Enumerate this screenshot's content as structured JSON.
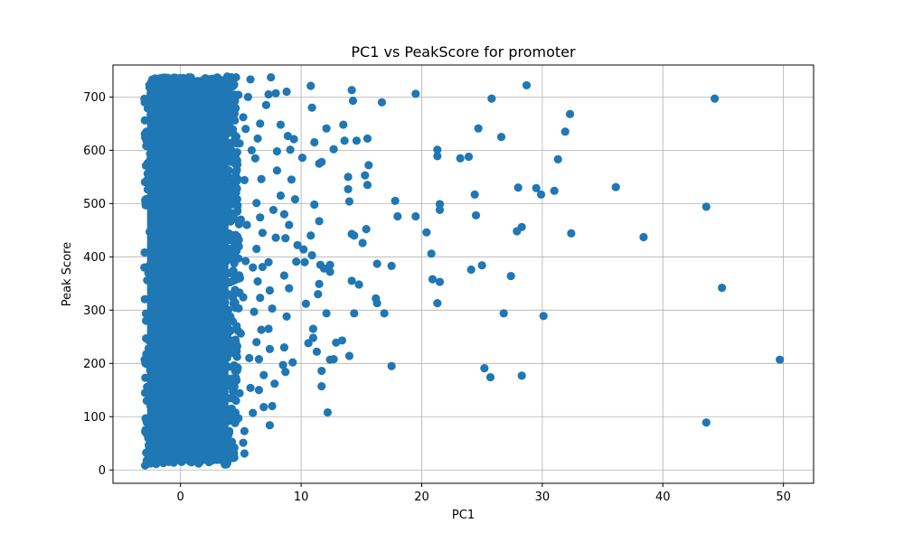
{
  "chart_data": {
    "type": "scatter",
    "title": "PC1 vs PeakScore for promoter",
    "xlabel": "PC1",
    "ylabel": "Peak Score",
    "xlim": [
      -5.6,
      52.5
    ],
    "ylim": [
      -25,
      760
    ],
    "x_ticks": [
      0,
      10,
      20,
      30,
      40,
      50
    ],
    "y_ticks": [
      0,
      100,
      200,
      300,
      400,
      500,
      600,
      700
    ],
    "grid": true,
    "legend": "none",
    "marker_color": "#1f77b4",
    "dense_region": {
      "x_range": [
        -3.0,
        4.2
      ],
      "y_range": [
        8,
        740
      ],
      "note_units": "data"
    },
    "series": [
      {
        "values": [
          [
            44.3,
            697
          ],
          [
            28.7,
            722
          ],
          [
            32.3,
            668
          ],
          [
            31.9,
            635
          ],
          [
            26.6,
            625
          ],
          [
            25.8,
            697
          ],
          [
            19.5,
            706
          ],
          [
            16.7,
            690
          ],
          [
            14.2,
            713
          ],
          [
            14.3,
            693
          ],
          [
            24.7,
            641
          ],
          [
            31.3,
            583
          ],
          [
            21.3,
            601
          ],
          [
            21.3,
            589
          ],
          [
            23.2,
            585
          ],
          [
            23.9,
            588
          ],
          [
            36.1,
            531
          ],
          [
            28.0,
            530
          ],
          [
            29.5,
            529
          ],
          [
            29.9,
            517
          ],
          [
            31.0,
            524
          ],
          [
            24.4,
            517
          ],
          [
            43.6,
            494
          ],
          [
            28.3,
            456
          ],
          [
            27.9,
            448
          ],
          [
            32.4,
            444
          ],
          [
            38.4,
            437
          ],
          [
            21.5,
            499
          ],
          [
            21.5,
            488
          ],
          [
            24.5,
            478
          ],
          [
            19.5,
            476
          ],
          [
            17.8,
            505
          ],
          [
            18.0,
            476
          ],
          [
            20.4,
            446
          ],
          [
            20.8,
            406
          ],
          [
            17.5,
            383
          ],
          [
            16.3,
            387
          ],
          [
            24.1,
            376
          ],
          [
            25.0,
            384
          ],
          [
            27.4,
            364
          ],
          [
            20.9,
            358
          ],
          [
            21.5,
            353
          ],
          [
            21.3,
            313
          ],
          [
            16.2,
            322
          ],
          [
            16.3,
            313
          ],
          [
            16.9,
            294
          ],
          [
            26.8,
            294
          ],
          [
            30.1,
            289
          ],
          [
            44.9,
            342
          ],
          [
            17.5,
            195
          ],
          [
            25.2,
            191
          ],
          [
            25.7,
            174
          ],
          [
            28.3,
            177
          ],
          [
            49.7,
            207
          ],
          [
            43.6,
            89
          ],
          [
            14.6,
            618
          ],
          [
            15.5,
            622
          ],
          [
            15.6,
            572
          ],
          [
            15.3,
            553
          ],
          [
            15.5,
            535
          ],
          [
            13.9,
            550
          ],
          [
            13.9,
            527
          ],
          [
            14.0,
            504
          ],
          [
            15.4,
            452
          ],
          [
            14.2,
            443
          ],
          [
            14.4,
            440
          ],
          [
            15.1,
            426
          ],
          [
            14.8,
            348
          ],
          [
            14.2,
            355
          ],
          [
            14.4,
            294
          ],
          [
            14.0,
            214
          ],
          [
            13.4,
            243
          ],
          [
            12.9,
            239
          ],
          [
            12.7,
            208
          ],
          [
            12.4,
            207
          ],
          [
            12.2,
            108
          ],
          [
            11.7,
            186
          ],
          [
            11.7,
            157
          ],
          [
            11.3,
            222
          ],
          [
            12.1,
            294
          ],
          [
            11.0,
            248
          ],
          [
            11.0,
            265
          ],
          [
            10.6,
            238
          ],
          [
            10.4,
            312
          ],
          [
            11.5,
            349
          ],
          [
            12.4,
            372
          ],
          [
            12.4,
            385
          ],
          [
            11.6,
            385
          ],
          [
            11.9,
            378
          ],
          [
            11.4,
            330
          ],
          [
            10.9,
            403
          ],
          [
            10.3,
            390
          ],
          [
            9.6,
            391
          ],
          [
            9.7,
            422
          ],
          [
            10.2,
            414
          ],
          [
            10.8,
            440
          ],
          [
            11.5,
            467
          ],
          [
            11.1,
            498
          ],
          [
            11.7,
            578
          ],
          [
            11.1,
            615
          ],
          [
            10.9,
            680
          ],
          [
            10.8,
            721
          ],
          [
            12.1,
            641
          ],
          [
            12.7,
            602
          ],
          [
            13.5,
            648
          ],
          [
            11.5,
            575
          ],
          [
            13.6,
            618
          ],
          [
            10.1,
            586
          ],
          [
            9.4,
            621
          ],
          [
            9.2,
            545
          ],
          [
            9.5,
            508
          ],
          [
            8.6,
            480
          ],
          [
            9.0,
            460
          ],
          [
            8.7,
            435
          ],
          [
            8.6,
            365
          ],
          [
            9.0,
            341
          ],
          [
            8.8,
            288
          ],
          [
            8.6,
            230
          ],
          [
            8.5,
            197
          ],
          [
            8.7,
            184
          ],
          [
            9.3,
            202
          ],
          [
            7.8,
            162
          ],
          [
            7.4,
            227
          ],
          [
            7.3,
            265
          ],
          [
            7.6,
            303
          ],
          [
            7.4,
            337
          ],
          [
            7.3,
            390
          ],
          [
            7.9,
            436
          ],
          [
            7.7,
            488
          ],
          [
            8.3,
            515
          ],
          [
            8.0,
            562
          ],
          [
            8.0,
            598
          ],
          [
            8.9,
            627
          ],
          [
            9.1,
            601
          ],
          [
            8.3,
            648
          ],
          [
            7.9,
            707
          ],
          [
            8.8,
            710
          ],
          [
            7.5,
            737
          ],
          [
            7.3,
            705
          ],
          [
            7.1,
            685
          ],
          [
            6.6,
            650
          ],
          [
            6.4,
            622
          ],
          [
            6.2,
            585
          ],
          [
            6.7,
            546
          ],
          [
            6.3,
            501
          ],
          [
            6.6,
            474
          ],
          [
            6.8,
            445
          ],
          [
            6.3,
            415
          ],
          [
            6.8,
            381
          ],
          [
            6.4,
            354
          ],
          [
            6.6,
            323
          ],
          [
            6.1,
            297
          ],
          [
            6.7,
            263
          ],
          [
            6.3,
            240
          ],
          [
            6.5,
            208
          ],
          [
            6.9,
            178
          ],
          [
            6.5,
            150
          ],
          [
            6.9,
            118
          ],
          [
            7.6,
            120
          ],
          [
            7.4,
            84
          ],
          [
            6.0,
            107
          ],
          [
            5.8,
            154
          ],
          [
            5.3,
            73
          ],
          [
            5.2,
            51
          ],
          [
            5.3,
            31
          ],
          [
            4.8,
            97
          ],
          [
            4.9,
            144
          ],
          [
            5.0,
            256
          ],
          [
            5.2,
            324
          ],
          [
            5.4,
            392
          ],
          [
            5.0,
            470
          ],
          [
            5.3,
            544
          ],
          [
            4.9,
            613
          ],
          [
            5.2,
            662
          ],
          [
            5.6,
            700
          ],
          [
            5.8,
            733
          ],
          [
            4.6,
            737
          ],
          [
            4.8,
            704
          ],
          [
            4.5,
            656
          ],
          [
            4.6,
            558
          ],
          [
            4.7,
            485
          ],
          [
            4.8,
            397
          ],
          [
            4.5,
            337
          ],
          [
            4.3,
            224
          ],
          [
            4.2,
            170
          ],
          [
            4.6,
            130
          ],
          [
            3.8,
            92
          ],
          [
            3.1,
            28
          ],
          [
            2.6,
            18
          ],
          [
            1.5,
            12
          ],
          [
            -2.6,
            43
          ],
          [
            -2.4,
            190
          ],
          [
            -2.6,
            383
          ],
          [
            -2.3,
            473
          ],
          [
            -2.0,
            640
          ],
          [
            -1.9,
            725
          ],
          [
            -2.5,
            121
          ],
          [
            -2.3,
            286
          ],
          [
            -2.2,
            565
          ],
          [
            6.0,
            380
          ],
          [
            5.7,
            210
          ],
          [
            5.5,
            460
          ],
          [
            5.9,
            600
          ],
          [
            5.4,
            640
          ]
        ]
      }
    ]
  }
}
